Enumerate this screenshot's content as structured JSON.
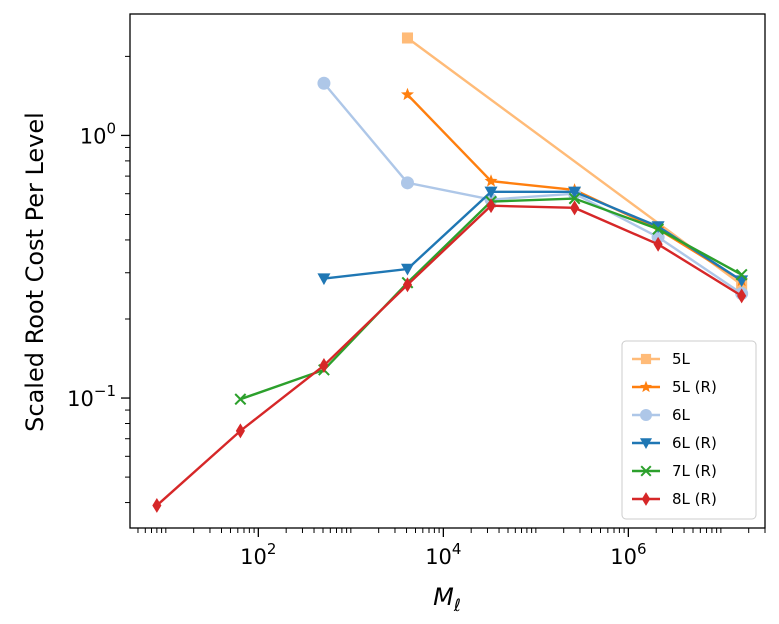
{
  "chart_data": {
    "type": "line",
    "title": "",
    "xlabel": "M",
    "xlabel_subscript": "ℓ",
    "ylabel": "Scaled Root Cost Per Level",
    "xscale": "log",
    "yscale": "log",
    "xlim": [
      4.1,
      30000000
    ],
    "ylim": [
      0.032,
      2.9
    ],
    "x_ticks": [
      {
        "value": 100,
        "base": "10",
        "exp": "2"
      },
      {
        "value": 10000,
        "base": "10",
        "exp": "4"
      },
      {
        "value": 1000000,
        "base": "10",
        "exp": "6"
      }
    ],
    "y_ticks": [
      {
        "value": 0.1,
        "base": "10",
        "exp": "−1"
      },
      {
        "value": 1.0,
        "label": "10",
        "exp": "0"
      }
    ],
    "legend_position": "lower right",
    "series": [
      {
        "name": "5L",
        "color": "#ffbb78",
        "marker": "square",
        "x": [
          4096,
          16777216
        ],
        "y": [
          2.35,
          0.27
        ]
      },
      {
        "name": "5L (R)",
        "color": "#ff7f0e",
        "marker": "star",
        "x": [
          4096,
          32768,
          262144,
          2097152,
          16777216
        ],
        "y": [
          1.43,
          0.67,
          0.62,
          0.44,
          0.28
        ]
      },
      {
        "name": "6L",
        "color": "#aec7e8",
        "marker": "circle",
        "x": [
          512,
          4096,
          32768,
          262144,
          2097152,
          16777216
        ],
        "y": [
          1.58,
          0.66,
          0.57,
          0.6,
          0.41,
          0.25
        ]
      },
      {
        "name": "6L (R)",
        "color": "#1f77b4",
        "marker": "triangle-down",
        "x": [
          512,
          4096,
          32768,
          262144,
          2097152,
          16777216
        ],
        "y": [
          0.285,
          0.31,
          0.61,
          0.61,
          0.45,
          0.28
        ]
      },
      {
        "name": "7L (R)",
        "color": "#2ca02c",
        "marker": "x",
        "x": [
          64,
          512,
          4096,
          32768,
          262144,
          2097152,
          16777216
        ],
        "y": [
          0.099,
          0.128,
          0.275,
          0.56,
          0.575,
          0.44,
          0.295
        ]
      },
      {
        "name": "8L (R)",
        "color": "#d62728",
        "marker": "diamond",
        "x": [
          8,
          64,
          512,
          4096,
          32768,
          262144,
          2097152,
          16777216
        ],
        "y": [
          0.039,
          0.075,
          0.133,
          0.27,
          0.54,
          0.53,
          0.385,
          0.245
        ]
      }
    ]
  }
}
